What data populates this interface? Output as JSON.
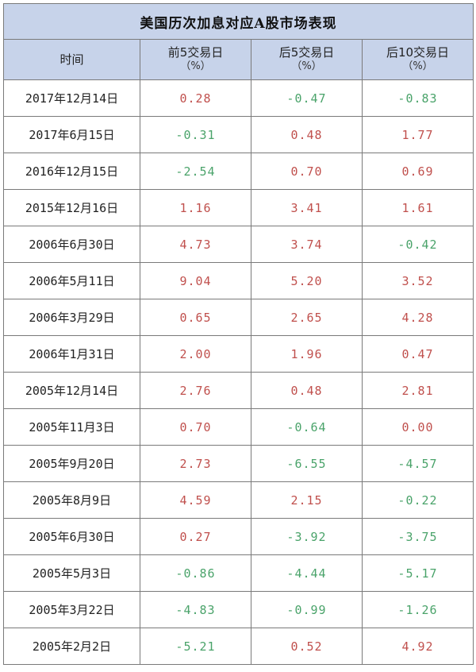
{
  "title": "美国历次加息对应A股市场表现",
  "headers": {
    "date": "时间",
    "before5": "前5交易日",
    "after5": "后5交易日",
    "after10": "后10交易日",
    "unit": "（%）"
  },
  "rows": [
    {
      "date": "2017年12月14日",
      "before5": "0.28",
      "after5": "-0.47",
      "after10": "-0.83"
    },
    {
      "date": "2017年6月15日",
      "before5": "-0.31",
      "after5": "0.48",
      "after10": "1.77"
    },
    {
      "date": "2016年12月15日",
      "before5": "-2.54",
      "after5": "0.70",
      "after10": "0.69"
    },
    {
      "date": "2015年12月16日",
      "before5": "1.16",
      "after5": "3.41",
      "after10": "1.61"
    },
    {
      "date": "2006年6月30日",
      "before5": "4.73",
      "after5": "3.74",
      "after10": "-0.42"
    },
    {
      "date": "2006年5月11日",
      "before5": "9.04",
      "after5": "5.20",
      "after10": "3.52"
    },
    {
      "date": "2006年3月29日",
      "before5": "0.65",
      "after5": "2.65",
      "after10": "4.28"
    },
    {
      "date": "2006年1月31日",
      "before5": "2.00",
      "after5": "1.96",
      "after10": "0.47"
    },
    {
      "date": "2005年12月14日",
      "before5": "2.76",
      "after5": "0.48",
      "after10": "2.81"
    },
    {
      "date": "2005年11月3日",
      "before5": "0.70",
      "after5": "-0.64",
      "after10": "0.00"
    },
    {
      "date": "2005年9月20日",
      "before5": "2.73",
      "after5": "-6.55",
      "after10": "-4.57"
    },
    {
      "date": "2005年8月9日",
      "before5": "4.59",
      "after5": "2.15",
      "after10": "-0.22"
    },
    {
      "date": "2005年6月30日",
      "before5": "0.27",
      "after5": "-3.92",
      "after10": "-3.75"
    },
    {
      "date": "2005年5月3日",
      "before5": "-0.86",
      "after5": "-4.44",
      "after10": "-5.17"
    },
    {
      "date": "2005年3月22日",
      "before5": "-4.83",
      "after5": "-0.99",
      "after10": "-1.26"
    },
    {
      "date": "2005年2月2日",
      "before5": "-5.21",
      "after5": "0.52",
      "after10": "4.92"
    }
  ],
  "colors": {
    "header_bg": "#c7d3ea",
    "positive": "#c0504d",
    "negative": "#4aa36a",
    "border": "#7a7a7a"
  }
}
